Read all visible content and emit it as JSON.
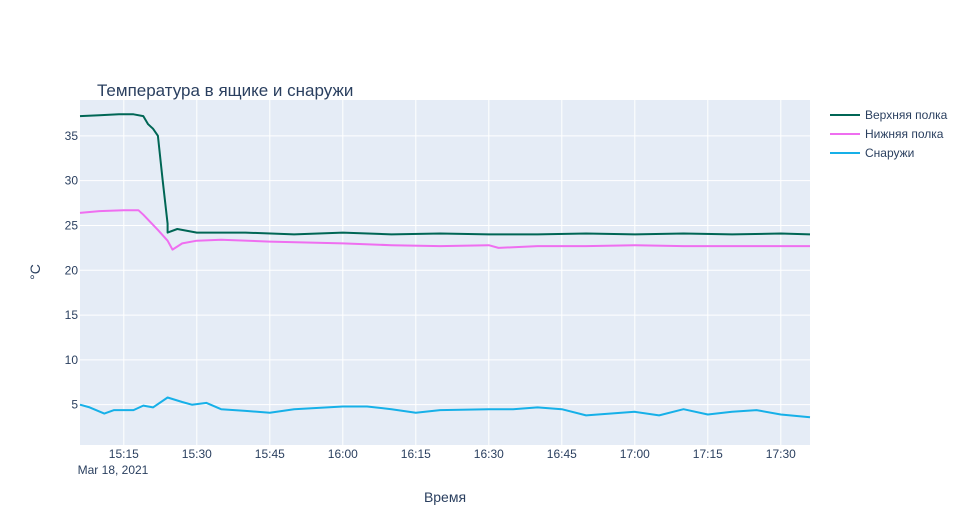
{
  "chart_data": {
    "type": "line",
    "title": "Температура в ящике и снаружи",
    "xlabel": "Время",
    "ylabel": "°C",
    "x_date_label": "Mar 18, 2021",
    "x_start": "15:06",
    "x_end": "17:36",
    "x_ticks": [
      "15:15",
      "15:30",
      "15:45",
      "16:00",
      "16:15",
      "16:30",
      "16:45",
      "17:00",
      "17:15",
      "17:30"
    ],
    "ylim": [
      0.5,
      39
    ],
    "y_ticks": [
      5,
      10,
      15,
      20,
      25,
      30,
      35
    ],
    "grid": true,
    "legend_position": "top-right",
    "series": [
      {
        "name": "Верхняя полка",
        "color": "#006655",
        "points": [
          [
            "15:06",
            37.2
          ],
          [
            "15:10",
            37.3
          ],
          [
            "15:14",
            37.4
          ],
          [
            "15:17",
            37.4
          ],
          [
            "15:19",
            37.2
          ],
          [
            "15:20",
            36.3
          ],
          [
            "15:21",
            35.8
          ],
          [
            "15:22",
            35.0
          ],
          [
            "15:23",
            30.0
          ],
          [
            "15:24",
            25.2
          ],
          [
            "15:24",
            24.2
          ],
          [
            "15:26",
            24.6
          ],
          [
            "15:30",
            24.2
          ],
          [
            "15:40",
            24.2
          ],
          [
            "15:50",
            24.0
          ],
          [
            "16:00",
            24.2
          ],
          [
            "16:10",
            24.0
          ],
          [
            "16:20",
            24.1
          ],
          [
            "16:30",
            24.0
          ],
          [
            "16:40",
            24.0
          ],
          [
            "16:50",
            24.1
          ],
          [
            "17:00",
            24.0
          ],
          [
            "17:10",
            24.1
          ],
          [
            "17:20",
            24.0
          ],
          [
            "17:30",
            24.1
          ],
          [
            "17:36",
            24.0
          ]
        ]
      },
      {
        "name": "Нижняя полка",
        "color": "#ef6ef0",
        "points": [
          [
            "15:06",
            26.4
          ],
          [
            "15:10",
            26.6
          ],
          [
            "15:15",
            26.7
          ],
          [
            "15:18",
            26.7
          ],
          [
            "15:19",
            26.2
          ],
          [
            "15:22",
            24.5
          ],
          [
            "15:24",
            23.3
          ],
          [
            "15:25",
            22.3
          ],
          [
            "15:27",
            23.0
          ],
          [
            "15:30",
            23.3
          ],
          [
            "15:35",
            23.4
          ],
          [
            "15:45",
            23.2
          ],
          [
            "16:00",
            23.0
          ],
          [
            "16:10",
            22.8
          ],
          [
            "16:20",
            22.7
          ],
          [
            "16:30",
            22.8
          ],
          [
            "16:32",
            22.5
          ],
          [
            "16:40",
            22.7
          ],
          [
            "16:50",
            22.7
          ],
          [
            "17:00",
            22.8
          ],
          [
            "17:10",
            22.7
          ],
          [
            "17:20",
            22.7
          ],
          [
            "17:30",
            22.7
          ],
          [
            "17:36",
            22.7
          ]
        ]
      },
      {
        "name": "Снаружи",
        "color": "#16b0e8",
        "points": [
          [
            "15:06",
            5.0
          ],
          [
            "15:08",
            4.7
          ],
          [
            "15:11",
            4.0
          ],
          [
            "15:13",
            4.4
          ],
          [
            "15:17",
            4.4
          ],
          [
            "15:19",
            4.9
          ],
          [
            "15:21",
            4.7
          ],
          [
            "15:24",
            5.8
          ],
          [
            "15:27",
            5.3
          ],
          [
            "15:29",
            5.0
          ],
          [
            "15:32",
            5.2
          ],
          [
            "15:35",
            4.5
          ],
          [
            "15:40",
            4.3
          ],
          [
            "15:45",
            4.1
          ],
          [
            "15:50",
            4.5
          ],
          [
            "16:00",
            4.8
          ],
          [
            "16:05",
            4.8
          ],
          [
            "16:10",
            4.5
          ],
          [
            "16:15",
            4.1
          ],
          [
            "16:20",
            4.4
          ],
          [
            "16:30",
            4.5
          ],
          [
            "16:35",
            4.5
          ],
          [
            "16:40",
            4.7
          ],
          [
            "16:45",
            4.5
          ],
          [
            "16:50",
            3.8
          ],
          [
            "17:00",
            4.2
          ],
          [
            "17:05",
            3.8
          ],
          [
            "17:10",
            4.5
          ],
          [
            "17:15",
            3.9
          ],
          [
            "17:20",
            4.2
          ],
          [
            "17:25",
            4.4
          ],
          [
            "17:30",
            3.9
          ],
          [
            "17:36",
            3.6
          ]
        ]
      }
    ]
  }
}
